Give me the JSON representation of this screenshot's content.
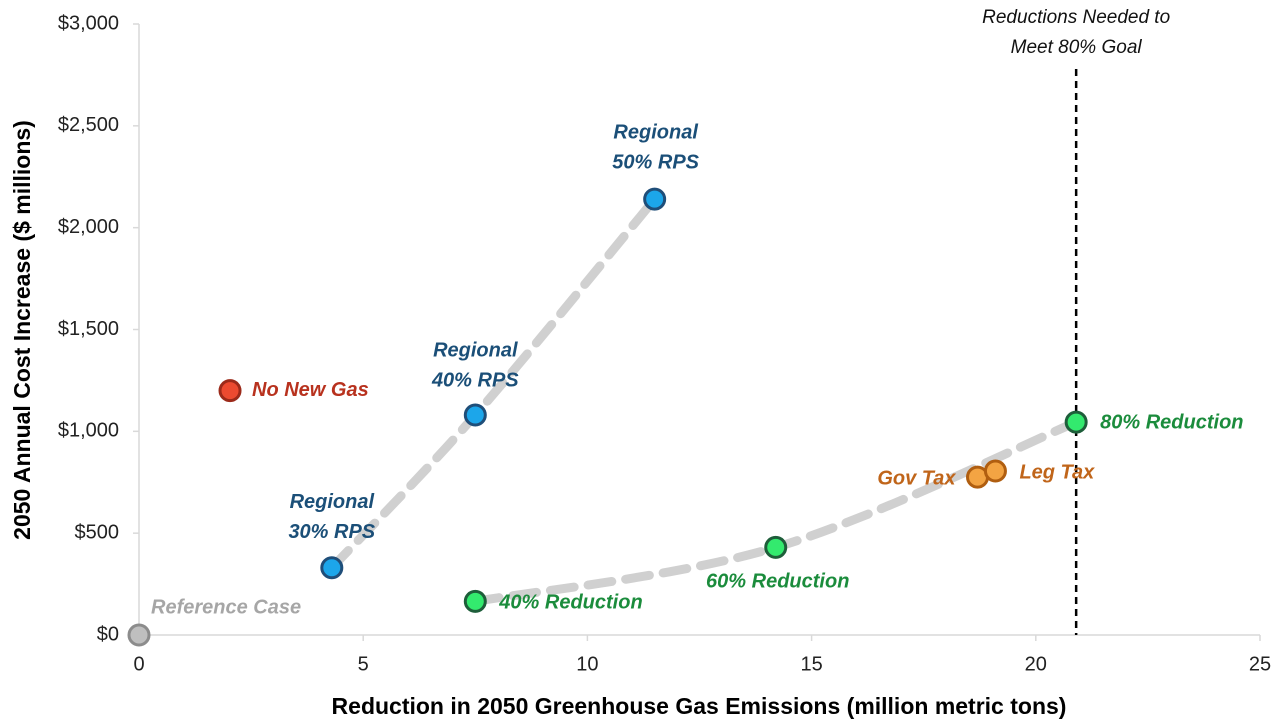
{
  "chart_data": {
    "type": "scatter",
    "xlabel": "Reduction in 2050 Greenhouse Gas Emissions (million metric tons)",
    "ylabel": "2050 Annual Cost Increase ($ millions)",
    "xlim": [
      0,
      25
    ],
    "xticks": [
      0,
      5,
      10,
      15,
      20,
      25
    ],
    "ylim": [
      0,
      3000
    ],
    "yticks": [
      {
        "value": 0,
        "label": "$0"
      },
      {
        "value": 500,
        "label": "$500"
      },
      {
        "value": 1000,
        "label": "$1,000"
      },
      {
        "value": 1500,
        "label": "$1,500"
      },
      {
        "value": 2000,
        "label": "$2,000"
      },
      {
        "value": 2500,
        "label": "$2,500"
      },
      {
        "value": 3000,
        "label": "$3,000"
      }
    ],
    "series": [
      {
        "color": "#bfbfbf",
        "edge": "#8c8c8c",
        "label_color": "#a6a6a6",
        "trendline": false,
        "x": [
          0
        ],
        "values": [
          0
        ],
        "labels": [
          [
            "Reference Case"
          ]
        ]
      },
      {
        "color": "#ec4a30",
        "edge": "#9c2a1a",
        "label_color": "#b8321e",
        "trendline": false,
        "x": [
          2.03
        ],
        "values": [
          1200
        ],
        "labels": [
          [
            "No New Gas"
          ]
        ]
      },
      {
        "color": "#1ca6ea",
        "edge": "#1f4e79",
        "label_color": "#1b4f78",
        "trendline": true,
        "x": [
          4.3,
          7.5,
          11.5
        ],
        "values": [
          330,
          1080,
          2140
        ],
        "labels": [
          [
            "Regional",
            "30% RPS"
          ],
          [
            "Regional",
            "40% RPS"
          ],
          [
            "Regional",
            "50% RPS"
          ]
        ]
      },
      {
        "color": "#33ea6e",
        "edge": "#1e5e3a",
        "label_color": "#1b8c3c",
        "trendline": true,
        "x": [
          7.5,
          14.2,
          20.9
        ],
        "values": [
          165,
          430,
          1045
        ],
        "labels": [
          [
            "40% Reduction"
          ],
          [
            "60% Reduction"
          ],
          [
            "80% Reduction"
          ]
        ]
      },
      {
        "color": "#f3a443",
        "edge": "#b05e10",
        "label_color": "#c0651a",
        "trendline": false,
        "x": [
          18.7,
          19.1
        ],
        "values": [
          775,
          805
        ],
        "labels": [
          [
            "Gov Tax"
          ],
          [
            "Leg Tax"
          ]
        ]
      }
    ],
    "annotation": {
      "x": 20.9,
      "text": [
        "Reductions Needed to",
        "Meet 80% Goal"
      ]
    }
  }
}
